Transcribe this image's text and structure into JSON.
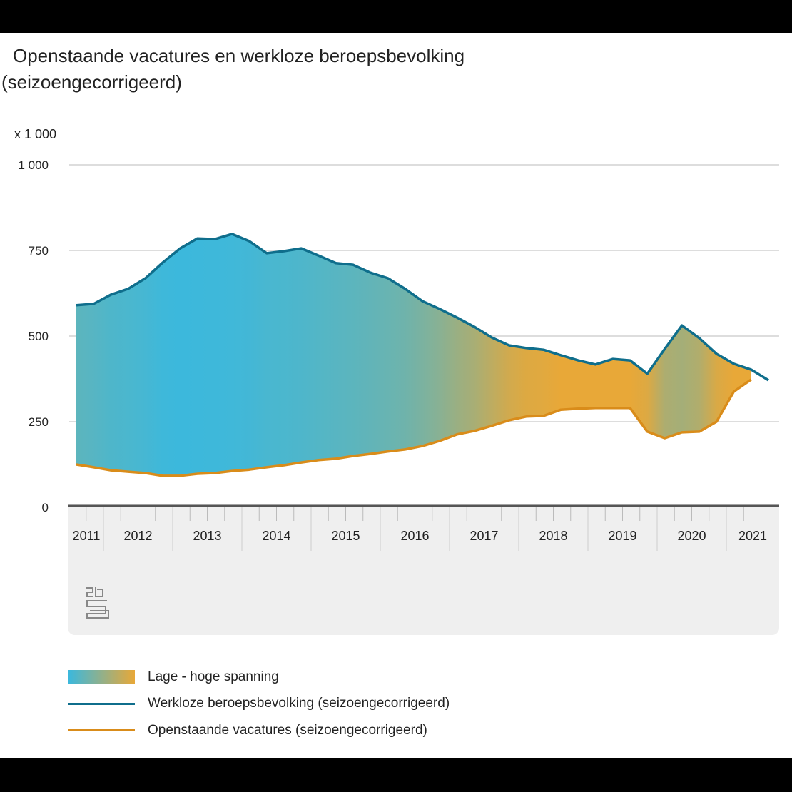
{
  "title_line1": "Openstaande vacatures en werkloze beroepsbevolking",
  "title_line2": "(seizoengecorrigeerd)",
  "logo": "cbs",
  "chart_data": {
    "type": "area",
    "title": "Openstaande vacatures en werkloze beroepsbevolking (seizoengecorrigeerd)",
    "ylabel": "x 1 000",
    "ylim": [
      0,
      1000
    ],
    "yticks": [
      0,
      250,
      500,
      750,
      1000
    ],
    "ytick_labels": [
      "0",
      "250",
      "500",
      "750",
      "1 000"
    ],
    "grid": true,
    "legend_placement": "bottom",
    "x_year_labels": [
      "2011",
      "2012",
      "2013",
      "2014",
      "2015",
      "2016",
      "2017",
      "2018",
      "2019",
      "2020",
      "2021"
    ],
    "x": [
      "2011Q3",
      "2011Q4",
      "2012Q1",
      "2012Q2",
      "2012Q3",
      "2012Q4",
      "2013Q1",
      "2013Q2",
      "2013Q3",
      "2013Q4",
      "2014Q1",
      "2014Q2",
      "2014Q3",
      "2014Q4",
      "2015Q1",
      "2015Q2",
      "2015Q3",
      "2015Q4",
      "2016Q1",
      "2016Q2",
      "2016Q3",
      "2016Q4",
      "2017Q1",
      "2017Q2",
      "2017Q3",
      "2017Q4",
      "2018Q1",
      "2018Q2",
      "2018Q3",
      "2018Q4",
      "2019Q1",
      "2019Q2",
      "2019Q3",
      "2019Q4",
      "2020Q1",
      "2020Q2",
      "2020Q3",
      "2020Q4",
      "2021Q1",
      "2021Q2",
      "2021Q3"
    ],
    "series": [
      {
        "name": "Werkloze beroepsbevolking (seizoengecorrigeerd)",
        "color": "#0f6e8c",
        "values": [
          590,
          594,
          621,
          638,
          669,
          715,
          756,
          785,
          783,
          798,
          777,
          742,
          748,
          756,
          735,
          713,
          708,
          685,
          669,
          638,
          602,
          579,
          554,
          527,
          496,
          473,
          465,
          460,
          444,
          429,
          417,
          433,
          429,
          390,
          462,
          531,
          494,
          448,
          419,
          402,
          371
        ]
      },
      {
        "name": "Openstaande vacatures (seizoengecorrigeerd)",
        "color": "#d98c1a",
        "values": [
          125,
          117,
          108,
          104,
          100,
          92,
          92,
          98,
          100,
          106,
          110,
          117,
          123,
          131,
          138,
          142,
          150,
          156,
          163,
          169,
          179,
          194,
          213,
          223,
          238,
          254,
          265,
          267,
          285,
          288,
          290,
          290,
          290,
          221,
          202,
          219,
          221,
          250,
          338,
          373,
          null
        ]
      }
    ],
    "fill": {
      "name": "Lage - hoge spanning",
      "low_color": "#3bb8dd",
      "high_color": "#e8a838"
    }
  },
  "legend": [
    {
      "label": "Lage - hoge spanning",
      "kind": "gradient"
    },
    {
      "label": "Werkloze beroepsbevolking (seizoengecorrigeerd)",
      "kind": "line",
      "color": "#0f6e8c"
    },
    {
      "label": "Openstaande vacatures (seizoengecorrigeerd)",
      "kind": "line",
      "color": "#d98c1a"
    }
  ]
}
